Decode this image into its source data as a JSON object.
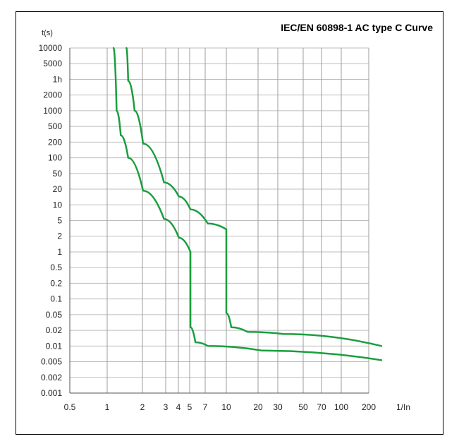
{
  "chart_data": {
    "type": "line",
    "title": "IEC/EN 60898-1 AC type C Curve",
    "xlabel": "1/In",
    "ylabel": "t(s)",
    "y_scale": "log",
    "grid": true,
    "x_ticks": [
      "0.5",
      "1",
      "2",
      "3",
      "4",
      "5",
      "7",
      "10",
      "20",
      "30",
      "50",
      "70",
      "100",
      "200"
    ],
    "y_ticks": [
      "10000",
      "5000",
      "1h",
      "2000",
      "1000",
      "500",
      "200",
      "100",
      "50",
      "20",
      "10",
      "5",
      "2",
      "1",
      "0.5",
      "0.2",
      "0.1",
      "0.05",
      "0.02",
      "0.01",
      "0.005",
      "0.002",
      "0.001"
    ],
    "line_color": "#1a9e3f",
    "series": [
      {
        "points": [
          [
            1.13,
            10000
          ],
          [
            1.2,
            1000
          ],
          [
            1.3,
            300
          ],
          [
            1.5,
            100
          ],
          [
            2,
            20
          ],
          [
            3,
            5
          ],
          [
            4,
            2
          ],
          [
            5,
            1
          ],
          [
            5,
            0.025
          ],
          [
            5.5,
            0.012
          ],
          [
            7,
            0.01
          ],
          [
            20,
            0.008
          ],
          [
            200,
            0.005
          ]
        ]
      },
      {
        "points": [
          [
            1.45,
            10000
          ],
          [
            1.5,
            3000
          ],
          [
            1.7,
            1000
          ],
          [
            2,
            200
          ],
          [
            3,
            30
          ],
          [
            4,
            15
          ],
          [
            5,
            8
          ],
          [
            7,
            4
          ],
          [
            10,
            3
          ],
          [
            10,
            0.05
          ],
          [
            11,
            0.025
          ],
          [
            15,
            0.02
          ],
          [
            30,
            0.018
          ],
          [
            200,
            0.01
          ]
        ]
      }
    ]
  }
}
